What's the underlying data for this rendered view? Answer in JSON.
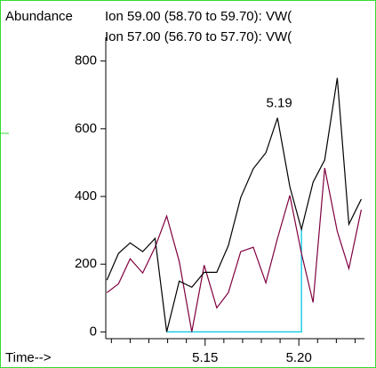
{
  "chart_data": {
    "type": "line",
    "ylabel": "Abundance",
    "xlabel": "Time-->",
    "x": [
      5.0976,
      5.1038,
      5.11,
      5.1167,
      5.1233,
      5.1295,
      5.1362,
      5.1429,
      5.1495,
      5.1562,
      5.1624,
      5.169,
      5.1757,
      5.1824,
      5.1886,
      5.1952,
      5.2014,
      5.2076,
      5.2138,
      5.2205,
      5.2267,
      5.2333
    ],
    "series": [
      {
        "name": "Ion  59.00 (58.70 to 59.70): VW(",
        "color": "#000000",
        "values": [
          153,
          232,
          263,
          237,
          276,
          0,
          150,
          132,
          176,
          176,
          255,
          397,
          482,
          529,
          632,
          429,
          303,
          442,
          508,
          750,
          318,
          392
        ]
      },
      {
        "name": "Ion  57.00 (56.70 to 57.70): VW(",
        "color": "#800040",
        "values": [
          116,
          142,
          216,
          174,
          250,
          342,
          208,
          0,
          197,
          71,
          116,
          237,
          250,
          145,
          276,
          403,
          232,
          87,
          484,
          297,
          187,
          361
        ]
      }
    ],
    "baseline": {
      "color": "#00c8e0",
      "x": [
        5.1295,
        5.2014,
        5.2014
      ],
      "y": [
        0,
        0,
        303
      ]
    },
    "annotations": [
      {
        "text": "5.19",
        "x": 5.1886,
        "y": 632
      }
    ],
    "xlim": [
      5.097,
      5.235
    ],
    "ylim": [
      -20,
      870
    ],
    "xticks": [
      {
        "value": 5.15,
        "label": "5.15"
      },
      {
        "value": 5.2,
        "label": "5.20"
      }
    ],
    "xminor_ticks": [
      5.1,
      5.11,
      5.12,
      5.13,
      5.14,
      5.16,
      5.17,
      5.18,
      5.19,
      5.21,
      5.22,
      5.23
    ],
    "yticks": [
      0,
      200,
      400,
      600,
      800
    ]
  }
}
